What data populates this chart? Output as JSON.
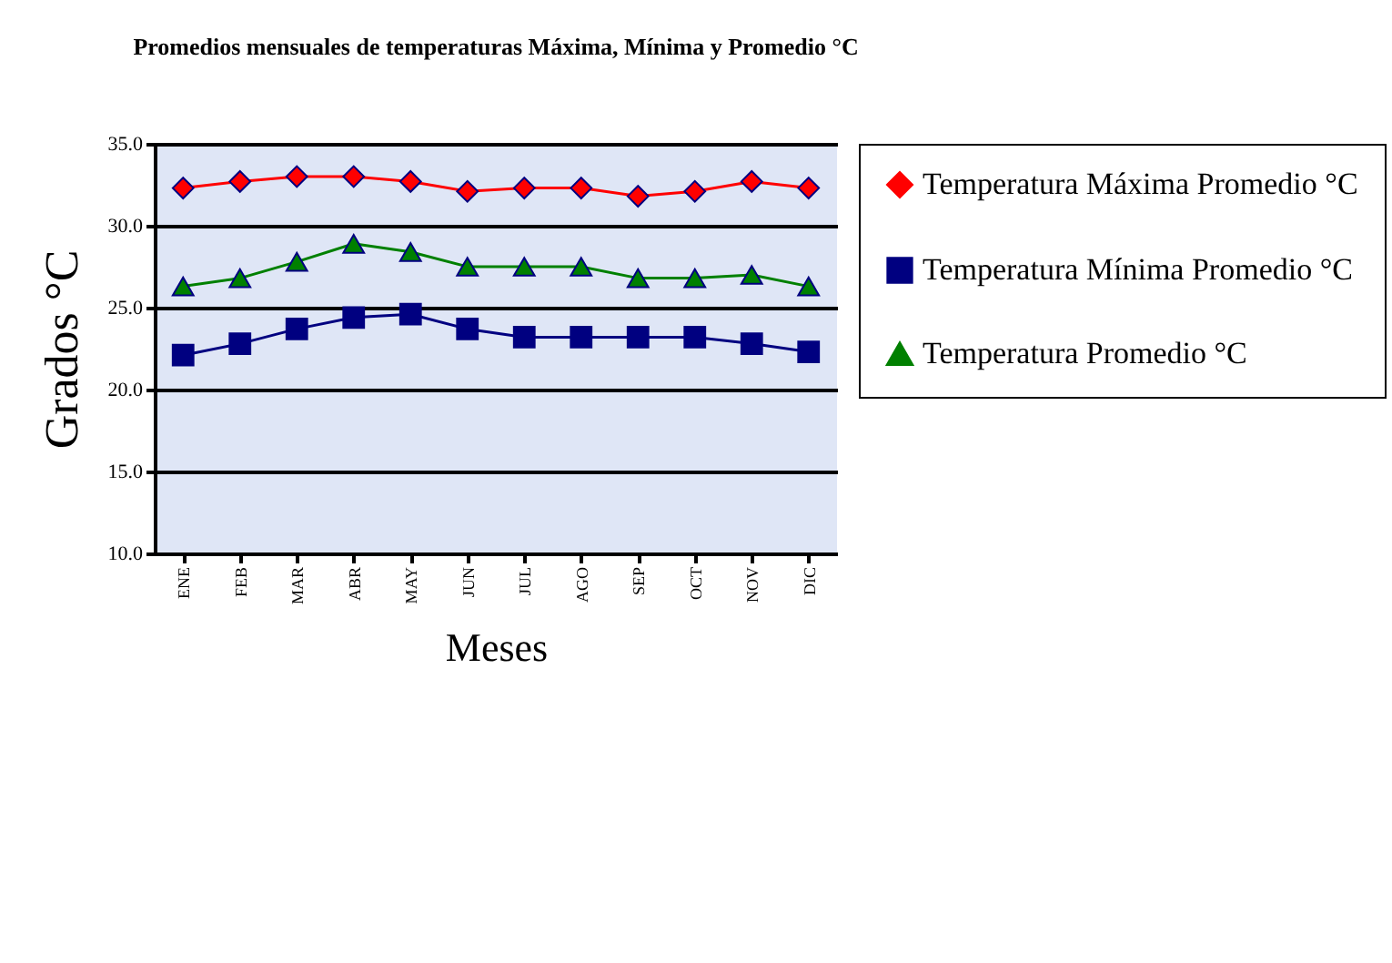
{
  "chart_data": {
    "type": "line",
    "title": "Promedios mensuales de temperaturas Máxima, Mínima y Promedio °C",
    "xlabel": "Meses",
    "ylabel": "Grados °C",
    "categories": [
      "ENE",
      "FEB",
      "MAR",
      "ABR",
      "MAY",
      "JUN",
      "JUL",
      "AGO",
      "SEP",
      "OCT",
      "NOV",
      "DIC"
    ],
    "series": [
      {
        "name": "Temperatura Máxima Promedio °C",
        "color": "#ff0000",
        "marker": "diamond",
        "values": [
          32.3,
          32.7,
          33.0,
          33.0,
          32.7,
          32.1,
          32.3,
          32.3,
          31.8,
          32.1,
          32.7,
          32.3
        ]
      },
      {
        "name": "Temperatura Mínima Promedio °C",
        "color": "#000080",
        "marker": "square",
        "values": [
          22.1,
          22.8,
          23.7,
          24.4,
          24.6,
          23.7,
          23.2,
          23.2,
          23.2,
          23.2,
          22.8,
          22.3
        ]
      },
      {
        "name": "Temperatura Promedio °C",
        "color": "#008000",
        "marker": "triangle",
        "values": [
          26.3,
          26.8,
          27.8,
          28.9,
          28.4,
          27.5,
          27.5,
          27.5,
          26.8,
          26.8,
          27.0,
          26.3
        ]
      }
    ],
    "ylim": [
      10,
      35
    ],
    "yticks": [
      {
        "value": 10,
        "label": "10.0"
      },
      {
        "value": 15,
        "label": "15.0"
      },
      {
        "value": 20,
        "label": "20.0"
      },
      {
        "value": 25,
        "label": "25.0"
      },
      {
        "value": 30,
        "label": "30.0"
      },
      {
        "value": 35,
        "label": "35.0"
      }
    ],
    "grid": "y",
    "legend": "right",
    "line_style": "solid"
  }
}
